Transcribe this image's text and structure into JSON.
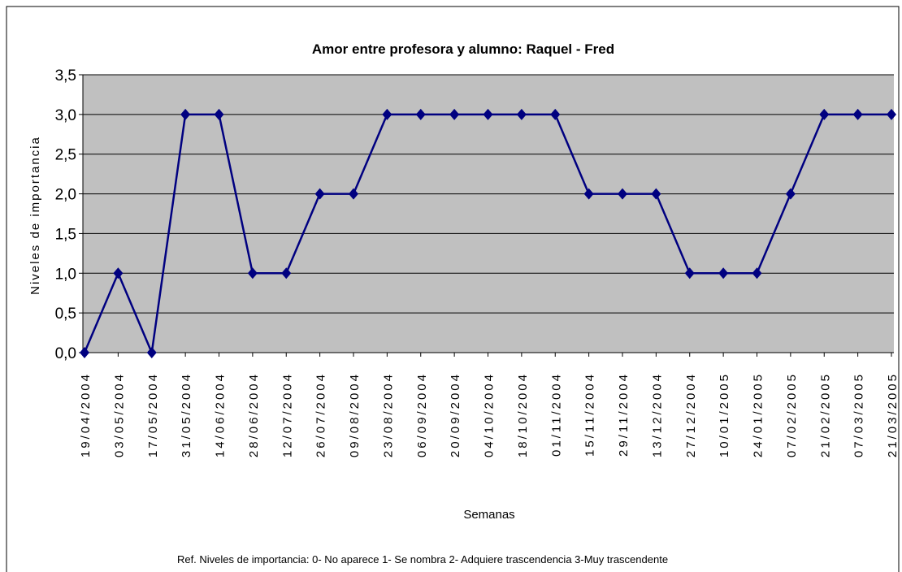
{
  "chart_data": {
    "type": "line",
    "title": "Amor entre profesora y alumno: Raquel - Fred",
    "x_label": "Semanas",
    "y_label": "Niveles de importancia",
    "note": "Ref. Niveles de importancia: 0- No aparece  1- Se nombra  2- Adquiere trascendencia  3-Muy trascendente",
    "categories": [
      "19/04/2004",
      "03/05/2004",
      "17/05/2004",
      "31/05/2004",
      "14/06/2004",
      "28/06/2004",
      "12/07/2004",
      "26/07/2004",
      "09/08/2004",
      "23/08/2004",
      "06/09/2004",
      "20/09/2004",
      "04/10/2004",
      "18/10/2004",
      "01/11/2004",
      "15/11/2004",
      "29/11/2004",
      "13/12/2004",
      "27/12/2004",
      "10/01/2005",
      "24/01/2005",
      "07/02/2005",
      "21/02/2005",
      "07/03/2005",
      "21/03/2005"
    ],
    "series": [
      {
        "name": "Raquel - Fred",
        "color": "#000080",
        "values": [
          0,
          1,
          0,
          3,
          3,
          1,
          1,
          2,
          2,
          3,
          3,
          3,
          3,
          3,
          3,
          2,
          2,
          2,
          1,
          1,
          1,
          2,
          3,
          3,
          3
        ]
      }
    ],
    "ylim": [
      0,
      3.5
    ],
    "yticks": [
      {
        "value": 0,
        "label": "0,0"
      },
      {
        "value": 0.5,
        "label": "0,5"
      },
      {
        "value": 1,
        "label": "1,0"
      },
      {
        "value": 1.5,
        "label": "1,5"
      },
      {
        "value": 2,
        "label": "2,0"
      },
      {
        "value": 2.5,
        "label": "2,5"
      },
      {
        "value": 3,
        "label": "3,0"
      },
      {
        "value": 3.5,
        "label": "3,5"
      }
    ],
    "grid": true,
    "legend": false
  }
}
